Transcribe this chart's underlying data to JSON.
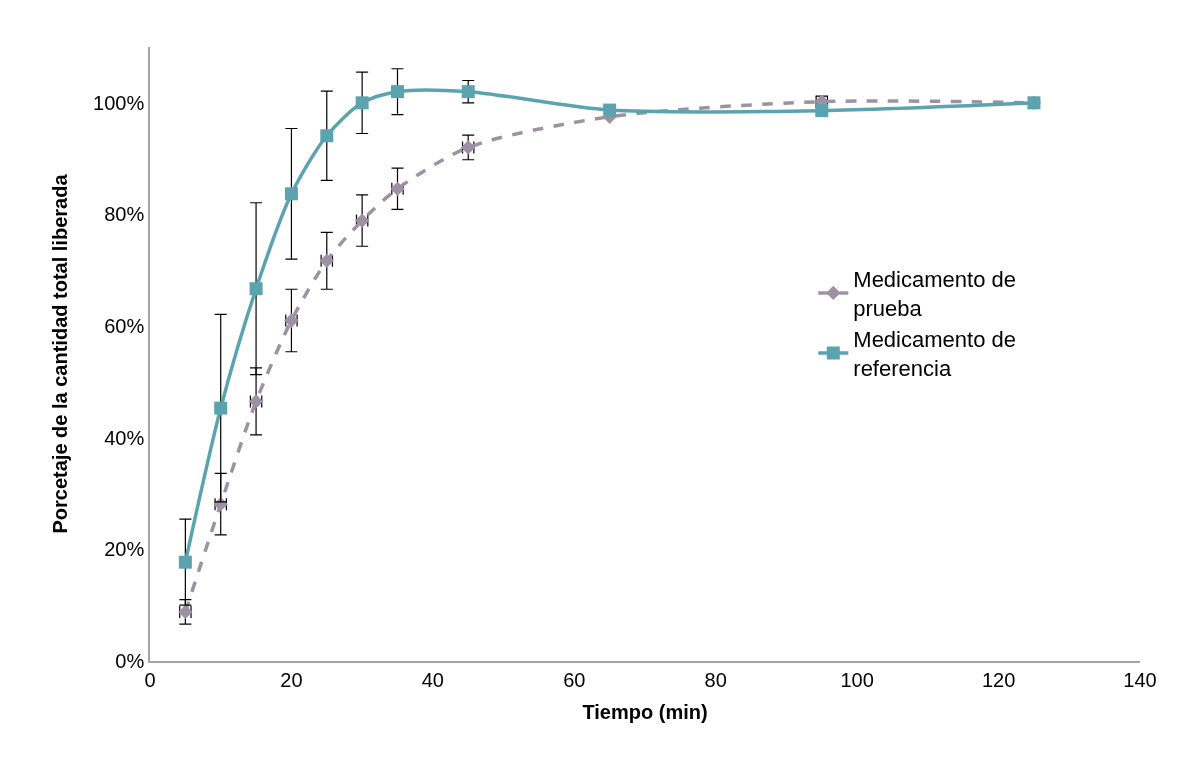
{
  "chart_data": {
    "type": "line",
    "xlabel": "Tiempo (min)",
    "ylabel": "Porcetaje de la cantidad total liberada",
    "x": [
      5,
      10,
      15,
      20,
      25,
      30,
      35,
      45,
      65,
      95,
      125
    ],
    "series": [
      {
        "name": "Medicamento de prueba",
        "color": "#9e91a3",
        "line_style": "dashed",
        "marker": "diamond",
        "values": [
          8.8,
          28.1,
          46.5,
          61.0,
          71.7,
          78.9,
          84.6,
          92.0,
          97.5,
          100.2,
          100.0
        ],
        "errors": [
          2.2,
          5.5,
          6.0,
          5.6,
          5.1,
          4.6,
          3.7,
          2.2,
          null,
          1.0,
          null
        ],
        "xerrors": [
          0.8,
          0.8,
          0.8,
          0.8,
          0.8,
          0.8,
          0.8,
          0.8,
          null,
          0.8,
          null
        ]
      },
      {
        "name": "Medicamento de referencia",
        "color": "#5ba3af",
        "line_style": "solid",
        "marker": "square",
        "values": [
          17.7,
          45.3,
          66.7,
          83.7,
          94.1,
          100.0,
          102.0,
          102.0,
          98.7,
          98.6,
          100.0
        ],
        "errors": [
          7.7,
          16.8,
          15.4,
          11.7,
          8.0,
          5.5,
          4.1,
          2.0,
          null,
          null,
          null
        ]
      }
    ],
    "xlim": [
      0,
      140
    ],
    "xticks": [
      0,
      20,
      40,
      60,
      80,
      100,
      120,
      140
    ],
    "ylim": [
      0,
      110
    ],
    "yticks": [
      {
        "value": 0,
        "label": "0%"
      },
      {
        "value": 20,
        "label": "20%"
      },
      {
        "value": 40,
        "label": "40%"
      },
      {
        "value": 60,
        "label": "60%"
      },
      {
        "value": 80,
        "label": "80%"
      },
      {
        "value": 100,
        "label": "100%"
      }
    ],
    "legend": "right"
  }
}
